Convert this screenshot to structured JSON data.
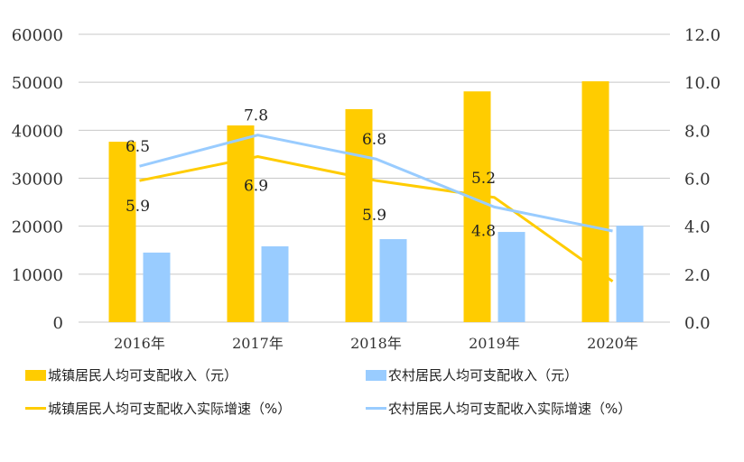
{
  "chart_data": {
    "type": "bar",
    "categories": [
      "2016年",
      "2017年",
      "2018年",
      "2019年",
      "2020年"
    ],
    "y_left": {
      "range": [
        0,
        60000
      ],
      "ticks": [
        "0",
        "10000",
        "20000",
        "30000",
        "40000",
        "50000",
        "60000"
      ]
    },
    "y_right": {
      "range": [
        0,
        12
      ],
      "ticks": [
        "0.0",
        "2.0",
        "4.0",
        "6.0",
        "8.0",
        "10.0",
        "12.0"
      ]
    },
    "grid": true,
    "legend_position": "bottom",
    "series": [
      {
        "name": "城镇居民人均可支配收入（元）",
        "type": "bar",
        "axis": "left",
        "color": "#FFCC00",
        "values": [
          37600,
          41000,
          44400,
          48100,
          50200
        ]
      },
      {
        "name": "农村居民人均可支配收入（元）",
        "type": "bar",
        "axis": "left",
        "color": "#99CCFF",
        "values": [
          14500,
          15800,
          17300,
          18800,
          20100
        ]
      },
      {
        "name": "城镇居民人均可支配收入实际增速（%）",
        "type": "line",
        "axis": "right",
        "color": "#FFCC00",
        "values": [
          5.9,
          6.9,
          5.9,
          5.2,
          1.7
        ],
        "labels": [
          "5.9",
          "6.9",
          "5.9",
          "5.2",
          ""
        ]
      },
      {
        "name": "农村居民人均可支配收入实际增速（%）",
        "type": "line",
        "axis": "right",
        "color": "#99CCFF",
        "values": [
          6.5,
          7.8,
          6.8,
          4.8,
          3.8
        ],
        "labels": [
          "6.5",
          "7.8",
          "6.8",
          "4.8",
          ""
        ]
      }
    ]
  }
}
